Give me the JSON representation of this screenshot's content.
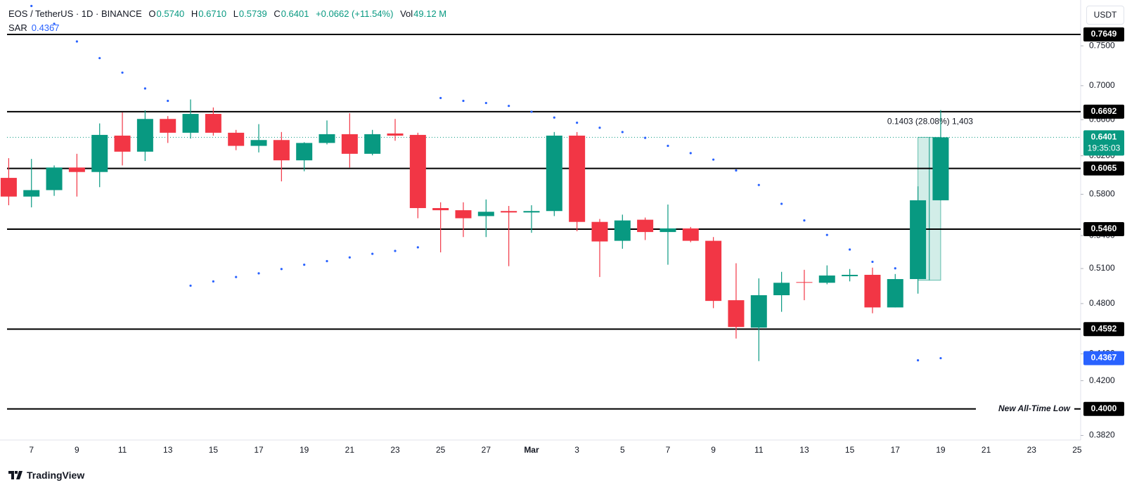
{
  "chart_data": {
    "type": "candlestick",
    "symbol": "EOS / TetherUS · 1D · BINANCE",
    "legend": [
      {
        "label": "O",
        "value": "0.5740"
      },
      {
        "label": "H",
        "value": "0.6710"
      },
      {
        "label": "L",
        "value": "0.5739"
      },
      {
        "label": "C",
        "value": "0.6401"
      }
    ],
    "change": "+0.0662 (+11.54%)",
    "volume": {
      "label": "Vol",
      "value": "49.12 M"
    },
    "currency": "USDT",
    "brand": "TradingView",
    "up_color": "#089981",
    "down_color": "#f23645",
    "log_scale": true,
    "grid": false,
    "categories": [
      null,
      "7",
      null,
      "9",
      null,
      "11",
      null,
      "13",
      null,
      "15",
      null,
      "17",
      null,
      "19",
      null,
      "21",
      null,
      "23",
      null,
      "25",
      null,
      "27",
      null,
      "Mar",
      null,
      "3",
      null,
      "5",
      null,
      "7",
      null,
      "9",
      null,
      "11",
      null,
      "13",
      null,
      "15",
      null,
      "17",
      null,
      "19",
      null,
      "21",
      null,
      "23",
      null,
      "25"
    ],
    "open": [
      0.5967,
      0.5777,
      0.5842,
      0.6075,
      0.6028,
      0.642,
      0.6244,
      0.6608,
      0.6452,
      0.6666,
      0.6452,
      0.6307,
      0.6371,
      0.6151,
      0.6339,
      0.6436,
      0.6221,
      0.6444,
      0.6428,
      0.5663,
      0.5642,
      0.5585,
      0.5634,
      0.562,
      0.5634,
      0.642,
      0.5529,
      0.5351,
      0.555,
      0.5433,
      0.5467,
      0.5351,
      0.4828,
      0.4604,
      0.487,
      0.4982,
      0.4976,
      0.5033,
      0.5045,
      0.4768,
      0.5008,
      0.574,
      null,
      null,
      null,
      null,
      null,
      null
    ],
    "high": [
      0.6174,
      0.6166,
      0.6097,
      0.6221,
      0.6557,
      0.6683,
      0.6707,
      0.6641,
      0.6835,
      0.6741,
      0.6484,
      0.6549,
      0.646,
      0.6347,
      0.6591,
      0.6674,
      0.6484,
      0.6608,
      0.6452,
      0.572,
      0.572,
      0.5748,
      0.5684,
      0.5691,
      0.646,
      0.646,
      0.5557,
      0.5599,
      0.5571,
      0.5698,
      0.5481,
      0.5386,
      0.5147,
      0.5014,
      0.5071,
      0.5089,
      0.5128,
      0.5096,
      0.5108,
      0.5052,
      0.588,
      0.671,
      null,
      null,
      null,
      null,
      null,
      null
    ],
    "low": [
      0.5691,
      0.567,
      0.5784,
      0.5777,
      0.5872,
      0.6097,
      0.6144,
      0.6339,
      0.6387,
      0.642,
      0.626,
      0.6236,
      0.5931,
      0.6036,
      0.6323,
      0.6075,
      0.6205,
      0.6363,
      0.5564,
      0.5245,
      0.5386,
      0.5386,
      0.5121,
      0.5426,
      0.5585,
      0.544,
      0.5026,
      0.5278,
      0.5358,
      0.5134,
      0.5338,
      0.4762,
      0.4518,
      0.4345,
      0.4732,
      0.4828,
      0.4963,
      0.4988,
      0.472,
      0.4768,
      0.4883,
      0.5739,
      null,
      null,
      null,
      null,
      null,
      null
    ],
    "close": [
      0.5777,
      0.5842,
      0.6075,
      0.6028,
      0.6428,
      0.6244,
      0.6608,
      0.6452,
      0.6666,
      0.6452,
      0.6307,
      0.6371,
      0.6151,
      0.6339,
      0.6436,
      0.6221,
      0.6436,
      0.642,
      0.5663,
      0.5642,
      0.5564,
      0.5627,
      0.562,
      0.5634,
      0.642,
      0.5529,
      0.5345,
      0.5543,
      0.5433,
      0.5467,
      0.5351,
      0.4822,
      0.4609,
      0.487,
      0.4976,
      0.4976,
      0.5039,
      0.5045,
      0.4768,
      0.5008,
      0.574,
      0.6401,
      null,
      null,
      null,
      null,
      null,
      null
    ],
    "sar": {
      "name": "SAR",
      "value_label": "0.4367",
      "color": "#2962ff",
      "values": [
        null,
        0.8036,
        0.7791,
        0.7557,
        0.7342,
        0.716,
        0.6966,
        0.6818,
        0.4951,
        0.4988,
        0.5026,
        0.5058,
        0.5096,
        0.5134,
        0.5166,
        0.5199,
        0.5232,
        0.5258,
        0.5291,
        0.6852,
        0.6818,
        0.6793,
        0.6759,
        0.6691,
        0.6624,
        0.6565,
        0.6508,
        0.646,
        0.6395,
        0.6307,
        0.6228,
        0.6159,
        0.6044,
        0.5894,
        0.5705,
        0.5543,
        0.5406,
        0.5271,
        0.516,
        0.5102,
        0.4351,
        0.4367,
        null,
        null,
        null,
        null,
        null,
        null
      ]
    },
    "ylim": [
      0.379,
      0.807
    ],
    "yticks": [
      {
        "value": 0.382,
        "label": "0.3820"
      },
      {
        "value": 0.42,
        "label": "0.4200"
      },
      {
        "value": 0.44,
        "label": "0.4400"
      },
      {
        "value": 0.48,
        "label": "0.4800"
      },
      {
        "value": 0.51,
        "label": "0.5100"
      },
      {
        "value": 0.54,
        "label": "0.5400"
      },
      {
        "value": 0.58,
        "label": "0.5800"
      },
      {
        "value": 0.62,
        "label": "0.6200"
      },
      {
        "value": 0.66,
        "label": "0.6600"
      },
      {
        "value": 0.7,
        "label": "0.7000"
      },
      {
        "value": 0.75,
        "label": "0.7500"
      }
    ],
    "levels": [
      {
        "value": 0.7649,
        "label": "0.7649"
      },
      {
        "value": 0.6692,
        "label": "0.6692"
      },
      {
        "value": 0.6065,
        "label": "0.6065"
      },
      {
        "value": 0.546,
        "label": "0.5460"
      },
      {
        "value": 0.4592,
        "label": "0.4592"
      },
      {
        "value": 0.4,
        "label": "0.4000",
        "annotation": "New All-Time Low"
      }
    ],
    "last_price": {
      "value": 0.6401,
      "label": "0.6401",
      "countdown": "19:35:03"
    },
    "sar_price": {
      "value": 0.4367,
      "label": "0.4367"
    },
    "measure": {
      "from": 0.4998,
      "to": 0.6401,
      "label": "0.1403 (28.08%) 1,403"
    }
  }
}
